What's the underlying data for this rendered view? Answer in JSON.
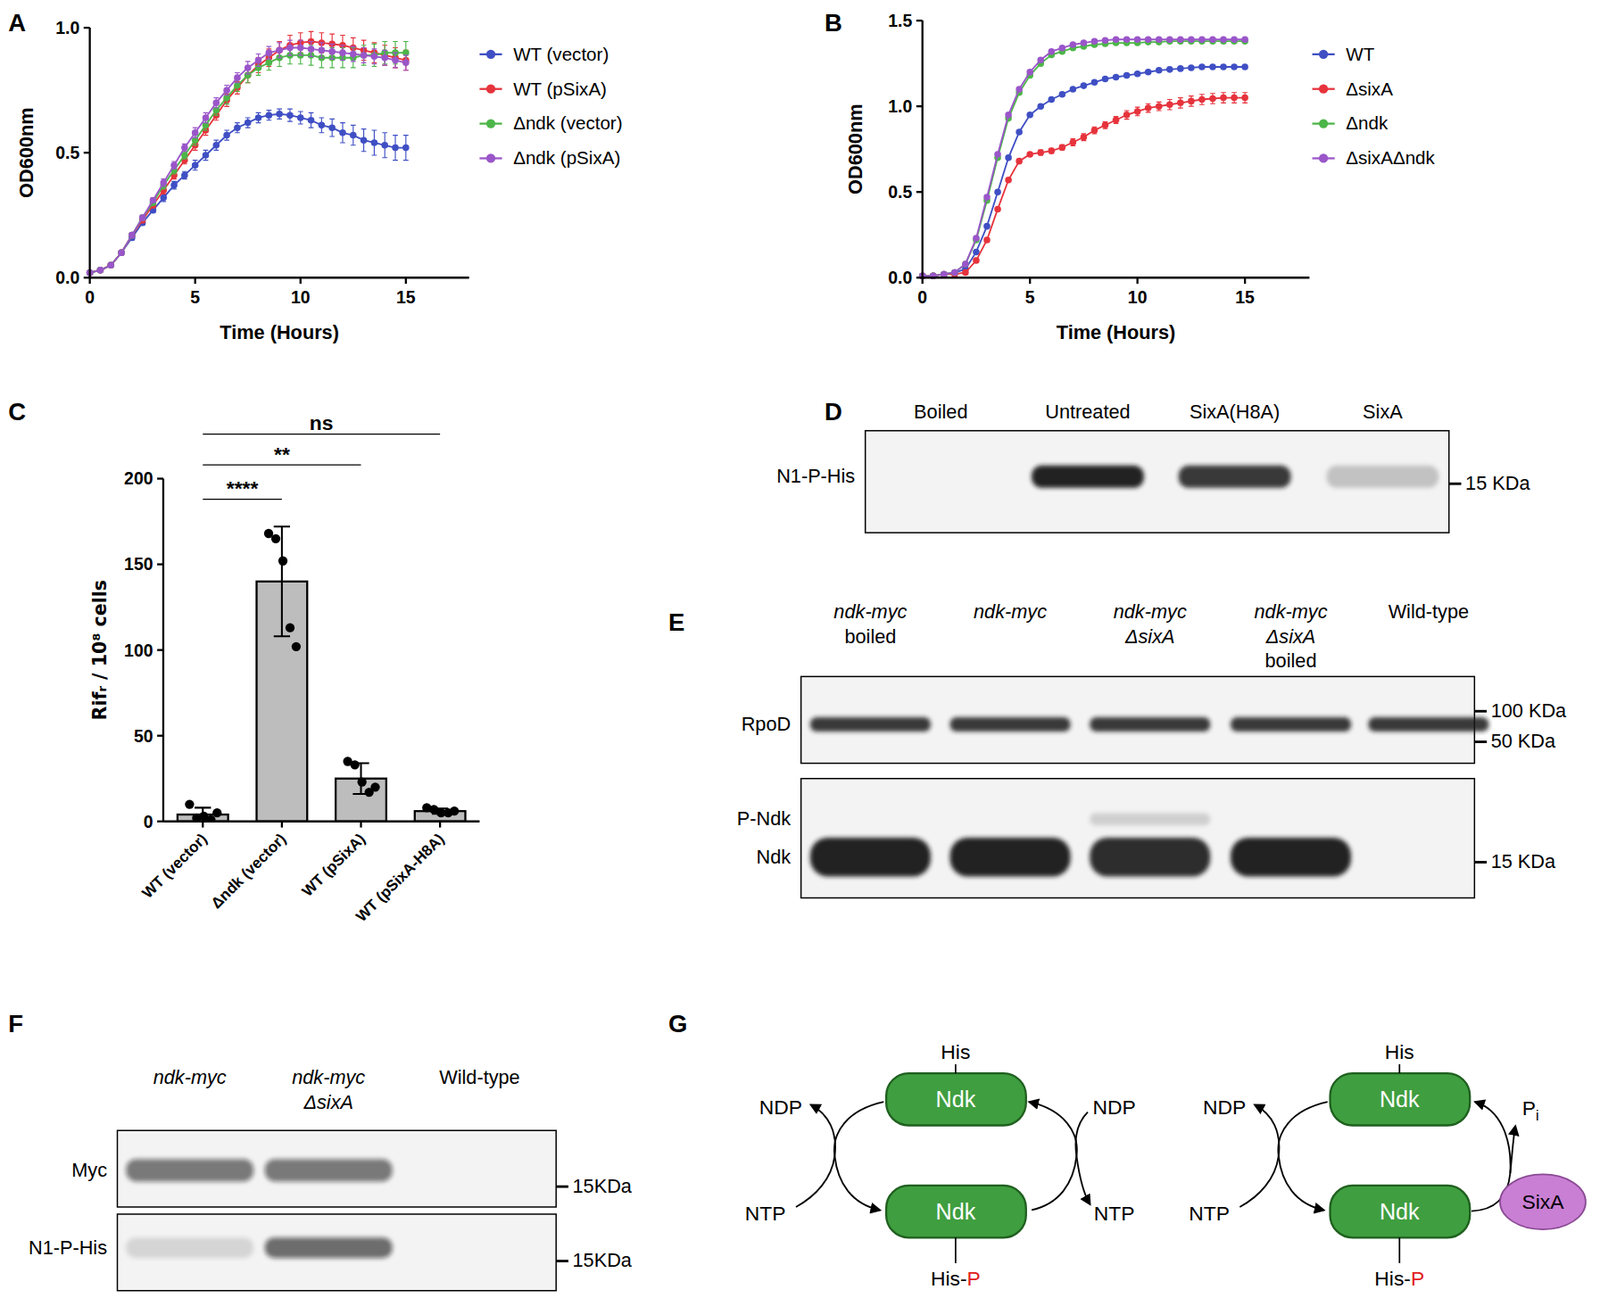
{
  "chart_data": [
    {
      "type": "line",
      "panel": "A",
      "x_label": "Time (Hours)",
      "y_label": "OD600nm",
      "x": [
        0,
        0.5,
        1,
        1.5,
        2,
        2.5,
        3,
        3.5,
        4,
        4.5,
        5,
        5.5,
        6,
        6.5,
        7,
        7.5,
        8,
        8.5,
        9,
        9.5,
        10,
        10.5,
        11,
        11.5,
        12,
        12.5,
        13,
        13.5,
        14,
        14.5,
        15
      ],
      "xlim": [
        0,
        18
      ],
      "xticks": [
        0,
        5,
        10,
        15
      ],
      "ylim": [
        0,
        1
      ],
      "yticks": [
        {
          "value": 0,
          "label": "0.0"
        },
        0.5,
        {
          "value": 1,
          "label": "1.0"
        }
      ],
      "grid": false,
      "legend": "right",
      "series": [
        {
          "name": "WT (vector)",
          "color": "#3f4fc4",
          "marker": "circle",
          "line_style": "solid",
          "values": [
            0.02,
            0.03,
            0.05,
            0.1,
            0.16,
            0.22,
            0.27,
            0.32,
            0.37,
            0.41,
            0.45,
            0.49,
            0.53,
            0.57,
            0.6,
            0.62,
            0.64,
            0.65,
            0.655,
            0.65,
            0.64,
            0.63,
            0.61,
            0.6,
            0.58,
            0.57,
            0.55,
            0.54,
            0.53,
            0.52,
            0.52
          ],
          "errors": [
            0.005,
            0.005,
            0.005,
            0.01,
            0.01,
            0.01,
            0.01,
            0.015,
            0.015,
            0.015,
            0.02,
            0.02,
            0.02,
            0.02,
            0.02,
            0.02,
            0.02,
            0.02,
            0.02,
            0.025,
            0.025,
            0.03,
            0.03,
            0.035,
            0.04,
            0.04,
            0.045,
            0.05,
            0.05,
            0.05,
            0.05
          ]
        },
        {
          "name": "WT  (pSixA)",
          "color": "#e6333c",
          "marker": "circle",
          "line_style": "solid",
          "values": [
            0.02,
            0.03,
            0.05,
            0.1,
            0.17,
            0.23,
            0.29,
            0.35,
            0.41,
            0.47,
            0.53,
            0.59,
            0.65,
            0.71,
            0.76,
            0.81,
            0.85,
            0.88,
            0.91,
            0.93,
            0.94,
            0.945,
            0.94,
            0.935,
            0.93,
            0.92,
            0.91,
            0.9,
            0.89,
            0.88,
            0.87
          ],
          "errors": [
            0.005,
            0.005,
            0.005,
            0.01,
            0.01,
            0.01,
            0.01,
            0.015,
            0.015,
            0.015,
            0.02,
            0.02,
            0.02,
            0.025,
            0.025,
            0.03,
            0.03,
            0.035,
            0.035,
            0.04,
            0.04,
            0.04,
            0.04,
            0.04,
            0.04,
            0.04,
            0.04,
            0.04,
            0.04,
            0.04,
            0.04
          ]
        },
        {
          "name": "Δndk (vector)",
          "color": "#4cb648",
          "marker": "circle",
          "line_style": "solid",
          "values": [
            0.02,
            0.03,
            0.05,
            0.1,
            0.17,
            0.24,
            0.3,
            0.37,
            0.43,
            0.49,
            0.55,
            0.61,
            0.67,
            0.72,
            0.77,
            0.81,
            0.84,
            0.86,
            0.88,
            0.89,
            0.89,
            0.89,
            0.88,
            0.88,
            0.88,
            0.88,
            0.89,
            0.89,
            0.9,
            0.9,
            0.9
          ],
          "errors": [
            0.005,
            0.005,
            0.005,
            0.01,
            0.01,
            0.01,
            0.01,
            0.015,
            0.015,
            0.015,
            0.02,
            0.02,
            0.02,
            0.025,
            0.025,
            0.03,
            0.03,
            0.03,
            0.035,
            0.035,
            0.035,
            0.04,
            0.04,
            0.04,
            0.04,
            0.04,
            0.04,
            0.045,
            0.045,
            0.045,
            0.045
          ]
        },
        {
          "name": "Δndk (pSixA)",
          "color": "#9a56c9",
          "marker": "circle",
          "line_style": "solid",
          "values": [
            0.02,
            0.03,
            0.05,
            0.1,
            0.17,
            0.24,
            0.31,
            0.38,
            0.45,
            0.52,
            0.58,
            0.64,
            0.7,
            0.75,
            0.8,
            0.84,
            0.87,
            0.9,
            0.91,
            0.92,
            0.92,
            0.915,
            0.91,
            0.905,
            0.9,
            0.895,
            0.89,
            0.885,
            0.88,
            0.87,
            0.86
          ],
          "errors": [
            0.005,
            0.005,
            0.005,
            0.01,
            0.01,
            0.01,
            0.01,
            0.015,
            0.015,
            0.015,
            0.02,
            0.02,
            0.02,
            0.02,
            0.02,
            0.025,
            0.025,
            0.025,
            0.03,
            0.03,
            0.03,
            0.03,
            0.03,
            0.03,
            0.03,
            0.03,
            0.03,
            0.03,
            0.03,
            0.03,
            0.03
          ]
        }
      ]
    },
    {
      "type": "line",
      "panel": "B",
      "x_label": "Time (Hours)",
      "y_label": "OD600nm",
      "x": [
        0,
        0.5,
        1,
        1.5,
        2,
        2.5,
        3,
        3.5,
        4,
        4.5,
        5,
        5.5,
        6,
        6.5,
        7,
        7.5,
        8,
        8.5,
        9,
        9.5,
        10,
        10.5,
        11,
        11.5,
        12,
        12.5,
        13,
        13.5,
        14,
        14.5,
        15
      ],
      "xlim": [
        0,
        18
      ],
      "xticks": [
        0,
        5,
        10,
        15
      ],
      "ylim": [
        0,
        1.5
      ],
      "yticks": [
        {
          "value": 0,
          "label": "0.0"
        },
        0.5,
        {
          "value": 1,
          "label": "1.0"
        },
        1.5
      ],
      "grid": false,
      "legend": "right",
      "series": [
        {
          "name": "WT",
          "color": "#3f4fc4",
          "marker": "circle",
          "line_style": "solid",
          "values": [
            0.01,
            0.01,
            0.02,
            0.03,
            0.05,
            0.15,
            0.3,
            0.5,
            0.7,
            0.85,
            0.95,
            1.0,
            1.04,
            1.07,
            1.1,
            1.12,
            1.14,
            1.16,
            1.17,
            1.18,
            1.19,
            1.2,
            1.21,
            1.215,
            1.22,
            1.225,
            1.23,
            1.23,
            1.23,
            1.23,
            1.23
          ]
        },
        {
          "name": "ΔsixA",
          "color": "#e6333c",
          "marker": "circle",
          "line_style": "solid",
          "values": [
            0.01,
            0.01,
            0.02,
            0.02,
            0.03,
            0.1,
            0.22,
            0.4,
            0.57,
            0.68,
            0.72,
            0.73,
            0.74,
            0.76,
            0.79,
            0.82,
            0.86,
            0.89,
            0.92,
            0.95,
            0.97,
            0.99,
            1.0,
            1.01,
            1.02,
            1.03,
            1.04,
            1.045,
            1.05,
            1.05,
            1.05
          ],
          "errors": [
            0.005,
            0.005,
            0.005,
            0.005,
            0.005,
            0.01,
            0.01,
            0.01,
            0.01,
            0.01,
            0.01,
            0.015,
            0.015,
            0.015,
            0.02,
            0.02,
            0.02,
            0.02,
            0.02,
            0.025,
            0.025,
            0.025,
            0.025,
            0.03,
            0.03,
            0.03,
            0.03,
            0.03,
            0.03,
            0.03,
            0.03
          ]
        },
        {
          "name": "Δndk",
          "color": "#4cb648",
          "marker": "circle",
          "line_style": "solid",
          "values": [
            0.01,
            0.01,
            0.02,
            0.03,
            0.08,
            0.22,
            0.45,
            0.7,
            0.93,
            1.08,
            1.18,
            1.25,
            1.3,
            1.32,
            1.34,
            1.35,
            1.36,
            1.365,
            1.37,
            1.37,
            1.37,
            1.375,
            1.375,
            1.38,
            1.38,
            1.38,
            1.38,
            1.38,
            1.38,
            1.38,
            1.38
          ]
        },
        {
          "name": "ΔsixAΔndk",
          "color": "#9a56c9",
          "marker": "circle",
          "line_style": "solid",
          "values": [
            0.01,
            0.01,
            0.02,
            0.03,
            0.08,
            0.23,
            0.47,
            0.72,
            0.95,
            1.1,
            1.2,
            1.27,
            1.32,
            1.34,
            1.36,
            1.37,
            1.38,
            1.385,
            1.39,
            1.39,
            1.39,
            1.39,
            1.39,
            1.39,
            1.39,
            1.39,
            1.39,
            1.39,
            1.39,
            1.39,
            1.39
          ]
        }
      ]
    },
    {
      "type": "bar",
      "panel": "C",
      "y_label": "Rifᵣ / 10⁸ cells",
      "categories": [
        "WT (vector)",
        "Δndk (vector)",
        "WT (pSixA)",
        "WT (pSixA-H8A)"
      ],
      "values": [
        4,
        140,
        25,
        6
      ],
      "errors": [
        4,
        32,
        9,
        1.5
      ],
      "points": [
        [
          10,
          2,
          3,
          1,
          5
        ],
        [
          168,
          165,
          152,
          113,
          102
        ],
        [
          35,
          33,
          23,
          17,
          20
        ],
        [
          8,
          7,
          5,
          5,
          6
        ]
      ],
      "color": "#bdbdbd",
      "ylim": [
        0,
        200
      ],
      "yticks": [
        0,
        50,
        100,
        150,
        200
      ],
      "grid": false,
      "annotations": [
        {
          "label": "****",
          "from": 0,
          "to": 1,
          "y": 188
        },
        {
          "label": "**",
          "from": 0,
          "to": 2,
          "y": 208
        },
        {
          "label": "ns",
          "from": 0,
          "to": 3,
          "y": 226
        }
      ]
    }
  ],
  "blots": [
    {
      "panel": "D",
      "lanes": [
        [
          {
            "text": "Boiled",
            "italic": false
          }
        ],
        [
          {
            "text": "Untreated",
            "italic": false
          }
        ],
        [
          {
            "text": "SixA(H8A)",
            "italic": false
          }
        ],
        [
          {
            "text": "SixA",
            "italic": false
          }
        ]
      ],
      "boxes": [
        {
          "rows": [
            {
              "label": "N1-P-His",
              "bands": [
                0,
                0.95,
                0.85,
                0.2
              ]
            }
          ],
          "markers": [
            "15 KDa"
          ]
        }
      ]
    },
    {
      "panel": "E",
      "lanes": [
        [
          {
            "text": "ndk-myc",
            "italic": true
          },
          {
            "text": "boiled",
            "italic": false
          }
        ],
        [
          {
            "text": "ndk-myc",
            "italic": true
          }
        ],
        [
          {
            "text": "ndk-myc",
            "italic": true
          },
          {
            "text": "ΔsixA",
            "italic": true
          }
        ],
        [
          {
            "text": "ndk-myc",
            "italic": true
          },
          {
            "text": "ΔsixA",
            "italic": true
          },
          {
            "text": "boiled",
            "italic": false
          }
        ],
        [
          {
            "text": "Wild-type",
            "italic": false
          }
        ]
      ],
      "boxes": [
        {
          "rows": [
            {
              "label": "RpoD",
              "bands": [
                0.85,
                0.85,
                0.85,
                0.85,
                0.85
              ]
            }
          ],
          "markers": [
            "100 KDa",
            "50 KDa"
          ]
        },
        {
          "rows": [
            {
              "label": "P-Ndk",
              "bands": [
                0,
                0,
                0.15,
                0,
                0
              ]
            },
            {
              "label": "Ndk",
              "bands": [
                0.95,
                0.95,
                0.9,
                0.95,
                0
              ]
            }
          ],
          "markers": [
            "15 KDa"
          ]
        }
      ]
    },
    {
      "panel": "F",
      "lanes": [
        [
          {
            "text": "ndk-myc",
            "italic": true
          }
        ],
        [
          {
            "text": "ndk-myc",
            "italic": true
          },
          {
            "text": "ΔsixA",
            "italic": true
          }
        ],
        [
          {
            "text": "Wild-type",
            "italic": false
          }
        ]
      ],
      "boxes": [
        {
          "rows": [
            {
              "label": "Myc",
              "bands": [
                0.55,
                0.55,
                0
              ]
            }
          ],
          "markers": [
            "15KDa"
          ]
        },
        {
          "rows": [
            {
              "label": "N1-P-His",
              "bands": [
                0.12,
                0.6,
                0
              ]
            }
          ],
          "markers": [
            "15KDa"
          ]
        }
      ]
    }
  ],
  "diagram": {
    "panel": "G",
    "enzyme": "Ndk",
    "residue": "His",
    "phospho_residue": {
      "text": "His-",
      "phosphate": "P"
    },
    "cycles": [
      {
        "left_product": "NDP",
        "left_substrate": "NTP",
        "right_substrate": "NDP",
        "right_product": "NTP"
      },
      {
        "left_product": "NDP",
        "left_substrate": "NTP",
        "phosphatase": "SixA",
        "released": {
          "text": "P",
          "subscript": "i"
        }
      }
    ]
  }
}
